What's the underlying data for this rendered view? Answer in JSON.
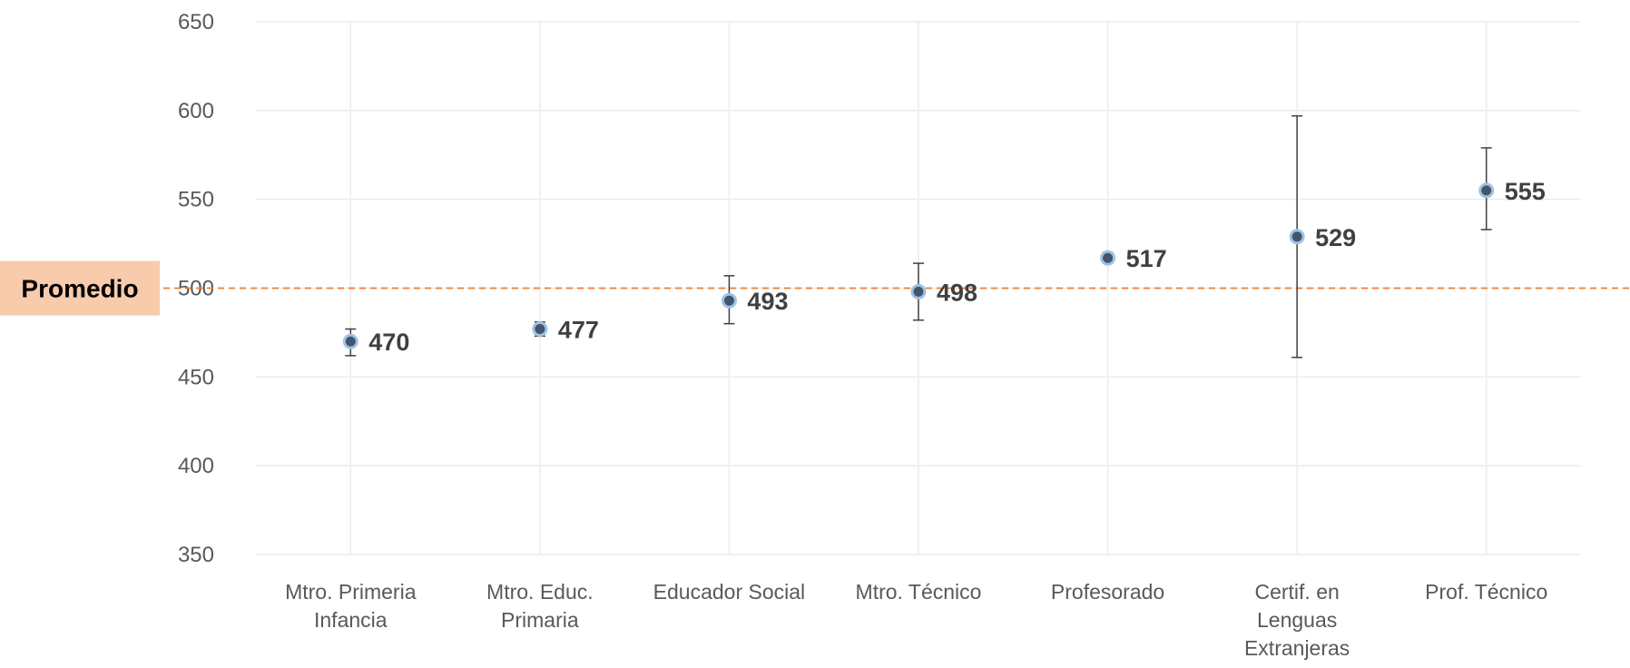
{
  "chart_data": {
    "type": "scatter",
    "title": "",
    "xlabel": "",
    "ylabel": "",
    "ylim": [
      350,
      650
    ],
    "yticks": [
      350,
      400,
      450,
      500,
      550,
      600,
      650
    ],
    "grid": true,
    "categories": [
      [
        "Mtro. Primeria",
        "Infancia"
      ],
      [
        "Mtro. Educ.",
        "Primaria"
      ],
      [
        "Educador Social"
      ],
      [
        "Mtro. Técnico"
      ],
      [
        "Profesorado"
      ],
      [
        "Certif. en",
        "Lenguas",
        "Extranjeras"
      ],
      [
        "Prof. Técnico"
      ]
    ],
    "values": [
      470,
      477,
      493,
      498,
      517,
      529,
      555
    ],
    "error_low": [
      462,
      473,
      480,
      482,
      515,
      461,
      533
    ],
    "error_high": [
      477,
      481,
      507,
      514,
      520,
      597,
      579
    ],
    "data_labels": [
      "470",
      "477",
      "493",
      "498",
      "517",
      "529",
      "555"
    ],
    "reference_line": {
      "value": 500,
      "label": "Promedio",
      "color": "#ED7D31",
      "label_bg": "#F8CBAD"
    },
    "point_color": "#44546A",
    "point_edge": "#9DC3E6",
    "error_color": "#404040"
  }
}
